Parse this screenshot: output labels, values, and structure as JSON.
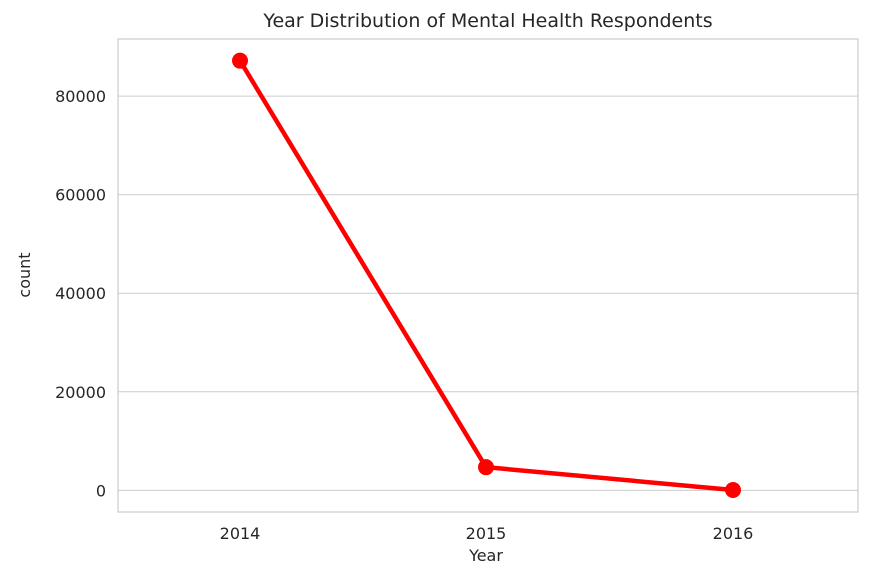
{
  "chart_data": {
    "type": "line",
    "title": "Year Distribution of Mental Health Respondents",
    "xlabel": "Year",
    "ylabel": "count",
    "categories": [
      "2014",
      "2015",
      "2016"
    ],
    "series": [
      {
        "values": [
          87200,
          4700,
          60
        ]
      }
    ],
    "yticks": [
      "0",
      "20000",
      "40000",
      "60000",
      "80000"
    ],
    "ytick_values": [
      0,
      20000,
      40000,
      60000,
      80000
    ],
    "ylim": [
      -4400,
      91600
    ],
    "grid": "horizontal",
    "line_color": "#ff0000",
    "grid_color": "#cccccc",
    "text_color": "#262626"
  }
}
